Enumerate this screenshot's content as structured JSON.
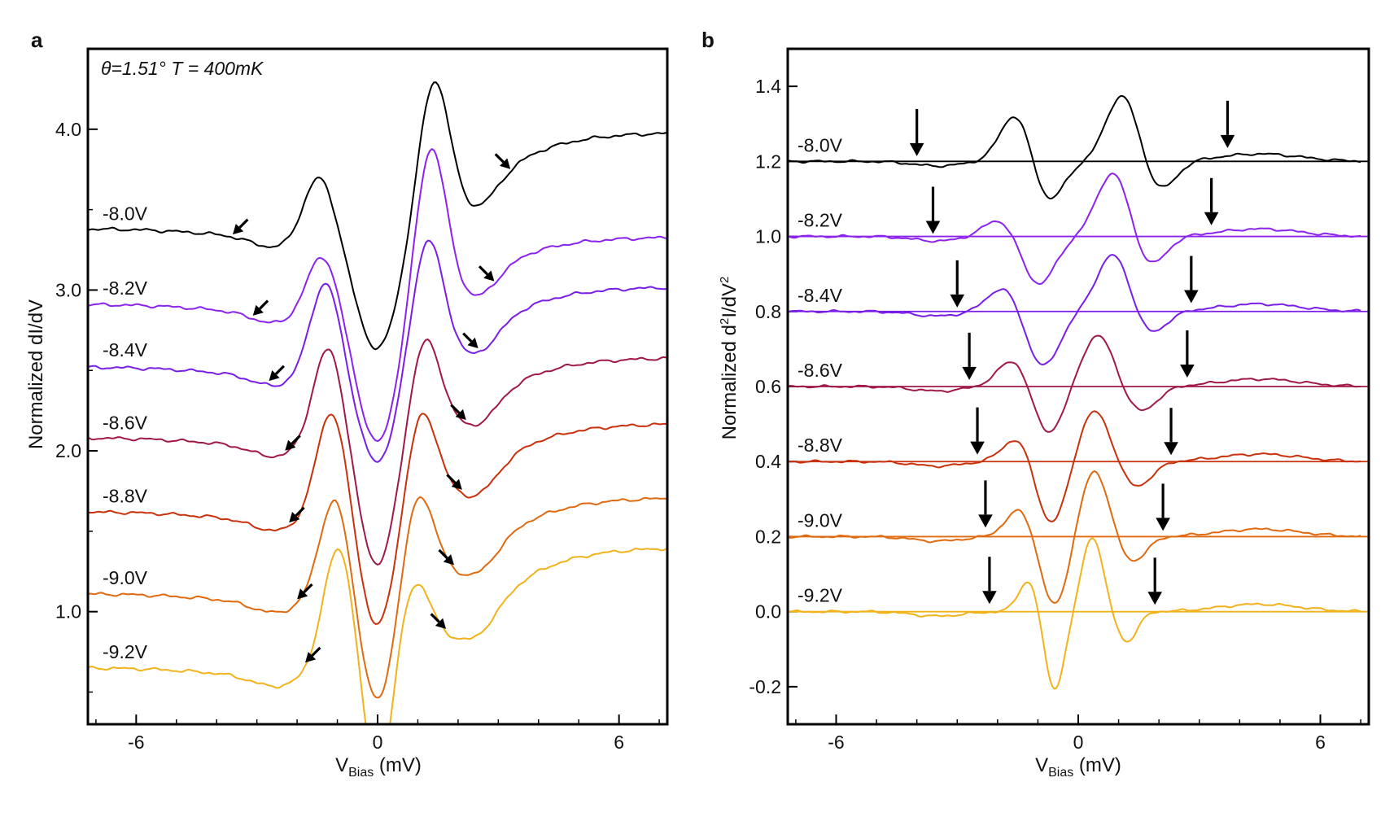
{
  "figure": {
    "panel_a_label": "a",
    "panel_b_label": "b"
  },
  "chart_data": [
    {
      "type": "line",
      "panel": "a",
      "title": "",
      "annotation": "θ=1.51° T = 400mK",
      "xlabel": "V",
      "xlabel_sub": "Bias",
      "xlabel_unit": " (mV)",
      "ylabel": "Normalized dI/dV",
      "xlim": [
        -7.2,
        7.2
      ],
      "ylim": [
        0.3,
        4.5
      ],
      "xticks": [
        -6,
        0,
        6
      ],
      "xtick_labels": [
        "-6",
        "0",
        "6"
      ],
      "yticks": [
        1.0,
        2.0,
        3.0,
        4.0
      ],
      "ytick_labels": [
        "1.0",
        "2.0",
        "3.0",
        "4.0"
      ],
      "series": [
        {
          "name": "-8.0V",
          "color": "#000000",
          "offset": 3.38,
          "arrow_neg": -3.6,
          "arrow_pos": 3.3,
          "dip_depth": 0.78,
          "peak_pos": 0.82,
          "peak_neg": 0.37,
          "dip_width": 0.55,
          "rise": 0.6
        },
        {
          "name": "-8.2V",
          "color": "#8b22ee",
          "offset": 2.91,
          "arrow_neg": -3.1,
          "arrow_pos": 2.9,
          "dip_depth": 0.88,
          "peak_pos": 0.92,
          "peak_neg": 0.35,
          "dip_width": 0.52,
          "rise": 0.42
        },
        {
          "name": "-8.4V",
          "color": "#7a1de6",
          "offset": 2.52,
          "arrow_neg": -2.7,
          "arrow_pos": 2.5,
          "dip_depth": 0.62,
          "peak_pos": 0.72,
          "peak_neg": 0.56,
          "dip_width": 0.5,
          "rise": 0.5
        },
        {
          "name": "-8.6V",
          "color": "#a01848",
          "offset": 2.08,
          "arrow_neg": -2.3,
          "arrow_pos": 2.2,
          "dip_depth": 0.82,
          "peak_pos": 0.55,
          "peak_neg": 0.6,
          "dip_width": 0.48,
          "rise": 0.5
        },
        {
          "name": "-8.8V",
          "color": "#c8310c",
          "offset": 1.62,
          "arrow_neg": -2.2,
          "arrow_pos": 2.1,
          "dip_depth": 0.75,
          "peak_pos": 0.55,
          "peak_neg": 0.66,
          "dip_width": 0.46,
          "rise": 0.55
        },
        {
          "name": "-9.0V",
          "color": "#e06a10",
          "offset": 1.11,
          "arrow_neg": -2.0,
          "arrow_pos": 1.9,
          "dip_depth": 0.72,
          "peak_pos": 0.55,
          "peak_neg": 0.62,
          "dip_width": 0.44,
          "rise": 0.6
        },
        {
          "name": "-9.2V",
          "color": "#f1b21c",
          "offset": 0.65,
          "arrow_neg": -1.8,
          "arrow_pos": 1.7,
          "dip_depth": 0.8,
          "peak_pos": 0.42,
          "peak_neg": 0.75,
          "dip_width": 0.34,
          "rise": 0.75
        }
      ]
    },
    {
      "type": "line",
      "panel": "b",
      "title": "",
      "xlabel": "V",
      "xlabel_sub": "Bias",
      "xlabel_unit": " (mV)",
      "ylabel": "Normalized d",
      "ylabel_sup1": "2",
      "ylabel_mid": "I/dV",
      "ylabel_sup2": "2",
      "xlim": [
        -7.2,
        7.2
      ],
      "ylim": [
        -0.3,
        1.5
      ],
      "xticks": [
        -6,
        0,
        6
      ],
      "xtick_labels": [
        "-6",
        "0",
        "6"
      ],
      "yticks": [
        -0.2,
        0.0,
        0.2,
        0.4,
        0.6,
        0.8,
        1.0,
        1.2,
        1.4
      ],
      "ytick_labels": [
        "-0.2",
        "0.0",
        "0.2",
        "0.4",
        "0.6",
        "0.8",
        "1.0",
        "1.2",
        "1.4"
      ],
      "series": [
        {
          "name": "-8.0V",
          "color": "#000000",
          "offset": 1.2,
          "arrow_neg": -4.0,
          "arrow_pos": 3.7,
          "a1": 0.14,
          "x1": -1.5,
          "a2": -0.12,
          "x2": -0.8,
          "a3": 0.18,
          "x3": 1.1,
          "a4": -0.08,
          "x4": 2.0,
          "w": 0.4
        },
        {
          "name": "-8.2V",
          "color": "#8b22ee",
          "offset": 1.0,
          "arrow_neg": -3.6,
          "arrow_pos": 3.3,
          "a1": 0.05,
          "x1": -1.9,
          "a2": -0.13,
          "x2": -1.0,
          "a3": 0.18,
          "x3": 0.9,
          "a4": -0.09,
          "x4": 1.7,
          "w": 0.42
        },
        {
          "name": "-8.4V",
          "color": "#7a1de6",
          "offset": 0.8,
          "arrow_neg": -3.0,
          "arrow_pos": 2.8,
          "a1": 0.07,
          "x1": -1.8,
          "a2": -0.15,
          "x2": -0.9,
          "a3": 0.16,
          "x3": 0.9,
          "a4": -0.07,
          "x4": 1.7,
          "w": 0.42
        },
        {
          "name": "-8.6V",
          "color": "#a01848",
          "offset": 0.6,
          "arrow_neg": -2.7,
          "arrow_pos": 2.7,
          "a1": 0.09,
          "x1": -1.5,
          "a2": -0.14,
          "x2": -0.8,
          "a3": 0.14,
          "x3": 0.5,
          "a4": -0.07,
          "x4": 1.5,
          "w": 0.42
        },
        {
          "name": "-8.8V",
          "color": "#c8310c",
          "offset": 0.4,
          "arrow_neg": -2.5,
          "arrow_pos": 2.3,
          "a1": 0.08,
          "x1": -1.4,
          "a2": -0.18,
          "x2": -0.7,
          "a3": 0.14,
          "x3": 0.4,
          "a4": -0.07,
          "x4": 1.4,
          "w": 0.4
        },
        {
          "name": "-9.0V",
          "color": "#e06a10",
          "offset": 0.2,
          "arrow_neg": -2.3,
          "arrow_pos": 2.1,
          "a1": 0.08,
          "x1": -1.4,
          "a2": -0.19,
          "x2": -0.6,
          "a3": 0.18,
          "x3": 0.4,
          "a4": -0.07,
          "x4": 1.3,
          "w": 0.36
        },
        {
          "name": "-9.2V",
          "color": "#f1b21c",
          "offset": 0.0,
          "arrow_neg": -2.2,
          "arrow_pos": 1.9,
          "a1": 0.09,
          "x1": -1.2,
          "a2": -0.21,
          "x2": -0.6,
          "a3": 0.2,
          "x3": 0.35,
          "a4": -0.08,
          "x4": 1.2,
          "w": 0.26
        }
      ]
    }
  ]
}
